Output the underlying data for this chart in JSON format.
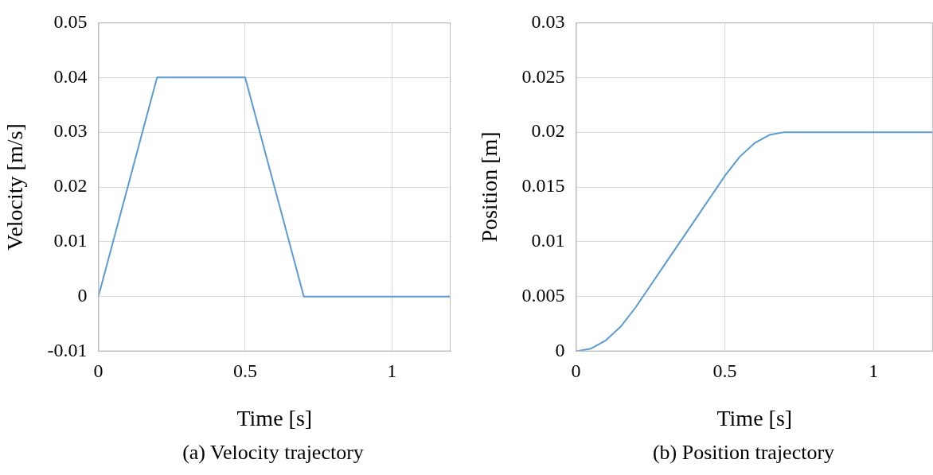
{
  "chart_data": [
    {
      "type": "line",
      "xlabel": "Time [s]",
      "ylabel": "Velocity [m/s]",
      "annotations": [
        "(a) Velocity trajectory"
      ],
      "x": [
        0,
        0.2,
        0.5,
        0.7,
        1.2
      ],
      "series": [
        {
          "color": "#5b9bd5",
          "values": [
            0,
            0.04,
            0.04,
            0,
            0
          ]
        }
      ],
      "xlim": [
        0,
        1.2
      ],
      "xticks": [
        0,
        0.5,
        1
      ],
      "ylim": [
        -0.01,
        0.05
      ],
      "yticks": [
        -0.01,
        0,
        0.01,
        0.02,
        0.03,
        0.04,
        0.05
      ],
      "grid": true
    },
    {
      "type": "line",
      "xlabel": "Time [s]",
      "ylabel": "Position [m]",
      "annotations": [
        "(b) Position trajectory"
      ],
      "x": [
        0,
        0.05,
        0.1,
        0.15,
        0.2,
        0.3,
        0.4,
        0.5,
        0.55,
        0.6,
        0.65,
        0.7,
        1.2
      ],
      "series": [
        {
          "color": "#5b9bd5",
          "values": [
            0,
            0.00025,
            0.001,
            0.00225,
            0.004,
            0.008,
            0.012,
            0.016,
            0.01775,
            0.019,
            0.01975,
            0.02,
            0.02
          ]
        }
      ],
      "xlim": [
        0,
        1.2
      ],
      "xticks": [
        0,
        0.5,
        1
      ],
      "ylim": [
        0,
        0.03
      ],
      "yticks": [
        0,
        0.005,
        0.01,
        0.015,
        0.02,
        0.025,
        0.03
      ],
      "grid": true
    }
  ]
}
